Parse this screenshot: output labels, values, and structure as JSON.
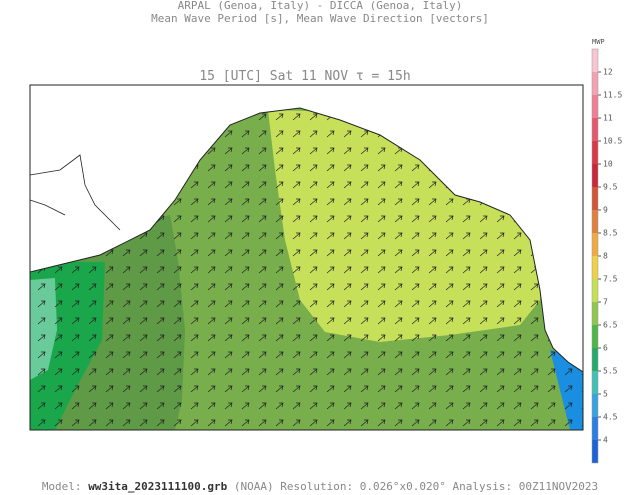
{
  "header": {
    "line1": "ARPAL (Genoa, Italy)  -  DICCA (Genoa, Italy)",
    "line2": "Mean Wave Period [s], Mean Wave Direction [vectors]"
  },
  "map": {
    "title": "15 [UTC] Sat 11 NOV  τ = 15h"
  },
  "colorbar": {
    "label": "MWP",
    "ticks": [
      12,
      11.5,
      11,
      10.5,
      10,
      9.5,
      9,
      8.5,
      8,
      7.5,
      7,
      6.5,
      6,
      5.5,
      5,
      4.5,
      4
    ]
  },
  "footer": {
    "model_label": "Model:",
    "model": "ww3ita_2023111100.grb",
    "source": "(NOAA)",
    "resolution_label": "Resolution:",
    "resolution": "0.026°x0.020°",
    "analysis_label": "Analysis:",
    "analysis": "00Z11NOV2023"
  }
}
